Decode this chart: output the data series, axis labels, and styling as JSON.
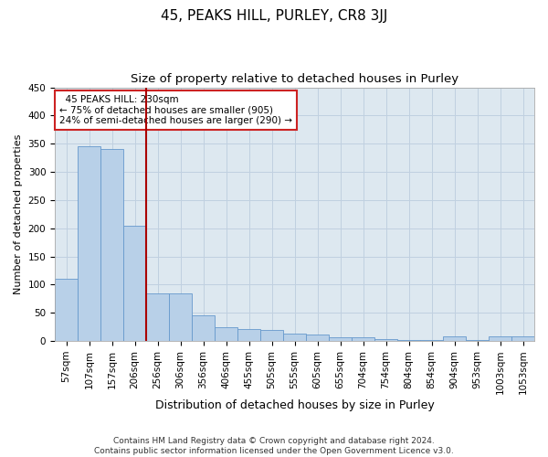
{
  "title": "45, PEAKS HILL, PURLEY, CR8 3JJ",
  "subtitle": "Size of property relative to detached houses in Purley",
  "xlabel": "Distribution of detached houses by size in Purley",
  "ylabel": "Number of detached properties",
  "categories": [
    "57sqm",
    "107sqm",
    "157sqm",
    "206sqm",
    "256sqm",
    "306sqm",
    "356sqm",
    "406sqm",
    "455sqm",
    "505sqm",
    "555sqm",
    "605sqm",
    "655sqm",
    "704sqm",
    "754sqm",
    "804sqm",
    "854sqm",
    "904sqm",
    "953sqm",
    "1003sqm",
    "1053sqm"
  ],
  "values": [
    110,
    345,
    340,
    205,
    85,
    85,
    45,
    25,
    22,
    20,
    13,
    12,
    7,
    7,
    3,
    2,
    1,
    8,
    1,
    8,
    8
  ],
  "bar_color": "#b8d0e8",
  "bar_edge_color": "#6699cc",
  "bar_edge_width": 0.6,
  "vline_color": "#aa0000",
  "annotation_text": "  45 PEAKS HILL: 230sqm\n← 75% of detached houses are smaller (905)\n24% of semi-detached houses are larger (290) →",
  "annotation_box_color": "white",
  "annotation_box_edge_color": "#cc2222",
  "ylim": [
    0,
    450
  ],
  "yticks": [
    0,
    50,
    100,
    150,
    200,
    250,
    300,
    350,
    400,
    450
  ],
  "grid_color": "#c0d0e0",
  "background_color": "#dde8f0",
  "footer": "Contains HM Land Registry data © Crown copyright and database right 2024.\nContains public sector information licensed under the Open Government Licence v3.0.",
  "title_fontsize": 11,
  "subtitle_fontsize": 9.5,
  "xlabel_fontsize": 9,
  "ylabel_fontsize": 8,
  "tick_fontsize": 7.5,
  "footer_fontsize": 6.5
}
